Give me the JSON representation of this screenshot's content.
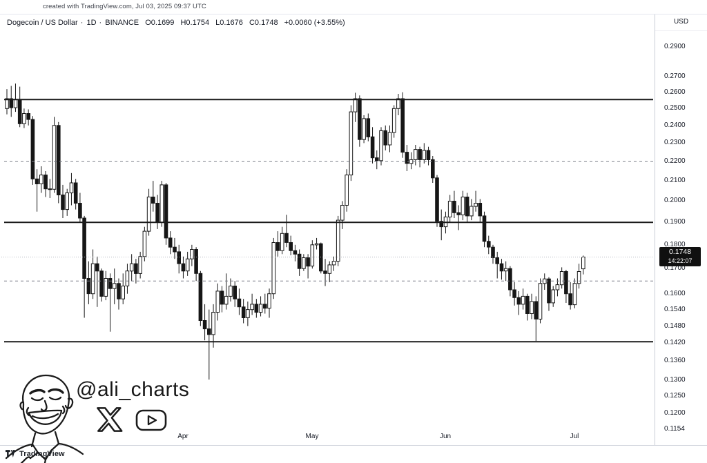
{
  "header": {
    "created_with": "created with TradingView.com, Jul 03, 2025 09:37 UTC"
  },
  "legend": {
    "symbol": "Dogecoin / US Dollar",
    "sep": "·",
    "interval": "1D",
    "exchange": "BINANCE",
    "open": "O0.1699",
    "high": "H0.1754",
    "low": "L0.1676",
    "close": "C0.1748",
    "change": "+0.0060 (+3.55%)"
  },
  "price_axis": {
    "currency": "USD",
    "ticks": [
      "0.2900",
      "0.2700",
      "0.2600",
      "0.2500",
      "0.2400",
      "0.2300",
      "0.2200",
      "0.2100",
      "0.2000",
      "0.1900",
      "0.1800",
      "0.1700",
      "0.1600",
      "0.1540",
      "0.1480",
      "0.1420",
      "0.1360",
      "0.1300",
      "0.1250",
      "0.1200",
      "0.1154"
    ],
    "last_price": "0.1748",
    "countdown": "14:22:07"
  },
  "time_axis": {
    "months": [
      {
        "label": "Apr",
        "date": "Apr 1"
      },
      {
        "label": "May",
        "date": "May 1"
      },
      {
        "label": "Jun",
        "date": "Jun 1"
      },
      {
        "label": "Jul",
        "date": "Jul 1"
      }
    ]
  },
  "watermark": {
    "handle": "@ali_charts"
  },
  "attribution": {
    "brand": "TradingView"
  },
  "chart_data": {
    "type": "candlestick",
    "title": "Dogecoin / US Dollar",
    "exchange": "BINANCE",
    "interval": "1D",
    "quote_currency": "USD",
    "scale": "logarithmic",
    "ohlc_last": {
      "open": 0.1699,
      "high": 0.1754,
      "low": 0.1676,
      "close": 0.1748,
      "change": 0.006,
      "change_pct": 3.55
    },
    "levels": {
      "solid": [
        0.2555,
        0.19,
        0.1425
      ],
      "dashed": [
        0.22,
        0.165
      ],
      "last_price": 0.1748
    },
    "y_axis_range": [
      0.1154,
      0.298
    ],
    "colors": {
      "up_fill": "#ffffff",
      "down_fill": "#161616",
      "outline": "#161616"
    },
    "candles": [
      {
        "d": "Feb 19",
        "o": 0.25,
        "h": 0.262,
        "l": 0.2465,
        "c": 0.256
      },
      {
        "d": "Feb 20",
        "o": 0.256,
        "h": 0.264,
        "l": 0.245,
        "c": 0.2505
      },
      {
        "d": "Feb 21",
        "o": 0.2505,
        "h": 0.2655,
        "l": 0.248,
        "c": 0.2555
      },
      {
        "d": "Feb 22",
        "o": 0.2555,
        "h": 0.2635,
        "l": 0.239,
        "c": 0.241
      },
      {
        "d": "Feb 23",
        "o": 0.241,
        "h": 0.25,
        "l": 0.2385,
        "c": 0.247
      },
      {
        "d": "Feb 24",
        "o": 0.247,
        "h": 0.2495,
        "l": 0.24,
        "c": 0.2435
      },
      {
        "d": "Feb 25",
        "o": 0.2435,
        "h": 0.2455,
        "l": 0.208,
        "c": 0.211
      },
      {
        "d": "Feb 26",
        "o": 0.211,
        "h": 0.216,
        "l": 0.195,
        "c": 0.2085
      },
      {
        "d": "Feb 27",
        "o": 0.2085,
        "h": 0.2175,
        "l": 0.204,
        "c": 0.213
      },
      {
        "d": "Feb 28",
        "o": 0.213,
        "h": 0.215,
        "l": 0.202,
        "c": 0.206
      },
      {
        "d": "Mar 1",
        "o": 0.206,
        "h": 0.211,
        "l": 0.2015,
        "c": 0.2058
      },
      {
        "d": "Mar 2",
        "o": 0.2058,
        "h": 0.245,
        "l": 0.204,
        "c": 0.24
      },
      {
        "d": "Mar 3",
        "o": 0.24,
        "h": 0.242,
        "l": 0.199,
        "c": 0.203
      },
      {
        "d": "Mar 4",
        "o": 0.203,
        "h": 0.208,
        "l": 0.192,
        "c": 0.196
      },
      {
        "d": "Mar 5",
        "o": 0.196,
        "h": 0.206,
        "l": 0.193,
        "c": 0.204
      },
      {
        "d": "Mar 6",
        "o": 0.204,
        "h": 0.214,
        "l": 0.198,
        "c": 0.209
      },
      {
        "d": "Mar 7",
        "o": 0.209,
        "h": 0.211,
        "l": 0.196,
        "c": 0.199
      },
      {
        "d": "Mar 8",
        "o": 0.199,
        "h": 0.204,
        "l": 0.19,
        "c": 0.192
      },
      {
        "d": "Mar 9",
        "o": 0.192,
        "h": 0.193,
        "l": 0.151,
        "c": 0.166
      },
      {
        "d": "Mar 10",
        "o": 0.166,
        "h": 0.173,
        "l": 0.156,
        "c": 0.16
      },
      {
        "d": "Mar 11",
        "o": 0.16,
        "h": 0.178,
        "l": 0.158,
        "c": 0.172
      },
      {
        "d": "Mar 12",
        "o": 0.172,
        "h": 0.175,
        "l": 0.155,
        "c": 0.169
      },
      {
        "d": "Mar 13",
        "o": 0.169,
        "h": 0.17,
        "l": 0.157,
        "c": 0.159
      },
      {
        "d": "Mar 14",
        "o": 0.159,
        "h": 0.169,
        "l": 0.1575,
        "c": 0.166
      },
      {
        "d": "Mar 15",
        "o": 0.166,
        "h": 0.168,
        "l": 0.146,
        "c": 0.162
      },
      {
        "d": "Mar 16",
        "o": 0.162,
        "h": 0.17,
        "l": 0.156,
        "c": 0.164
      },
      {
        "d": "Mar 17",
        "o": 0.164,
        "h": 0.166,
        "l": 0.154,
        "c": 0.158
      },
      {
        "d": "Mar 18",
        "o": 0.158,
        "h": 0.168,
        "l": 0.156,
        "c": 0.163
      },
      {
        "d": "Mar 19",
        "o": 0.163,
        "h": 0.172,
        "l": 0.16,
        "c": 0.169
      },
      {
        "d": "Mar 20",
        "o": 0.169,
        "h": 0.176,
        "l": 0.165,
        "c": 0.172
      },
      {
        "d": "Mar 21",
        "o": 0.172,
        "h": 0.174,
        "l": 0.164,
        "c": 0.168
      },
      {
        "d": "Mar 22",
        "o": 0.168,
        "h": 0.177,
        "l": 0.166,
        "c": 0.175
      },
      {
        "d": "Mar 23",
        "o": 0.175,
        "h": 0.188,
        "l": 0.173,
        "c": 0.186
      },
      {
        "d": "Mar 24",
        "o": 0.186,
        "h": 0.206,
        "l": 0.184,
        "c": 0.202
      },
      {
        "d": "Mar 25",
        "o": 0.202,
        "h": 0.21,
        "l": 0.195,
        "c": 0.199
      },
      {
        "d": "Mar 26",
        "o": 0.199,
        "h": 0.203,
        "l": 0.187,
        "c": 0.19
      },
      {
        "d": "Mar 27",
        "o": 0.19,
        "h": 0.21,
        "l": 0.188,
        "c": 0.208
      },
      {
        "d": "Mar 28",
        "o": 0.208,
        "h": 0.209,
        "l": 0.18,
        "c": 0.183
      },
      {
        "d": "Mar 29",
        "o": 0.183,
        "h": 0.186,
        "l": 0.176,
        "c": 0.179
      },
      {
        "d": "Mar 30",
        "o": 0.179,
        "h": 0.183,
        "l": 0.174,
        "c": 0.177
      },
      {
        "d": "Mar 31",
        "o": 0.177,
        "h": 0.18,
        "l": 0.168,
        "c": 0.172
      },
      {
        "d": "Apr 1",
        "o": 0.172,
        "h": 0.175,
        "l": 0.166,
        "c": 0.169
      },
      {
        "d": "Apr 2",
        "o": 0.169,
        "h": 0.177,
        "l": 0.167,
        "c": 0.174
      },
      {
        "d": "Apr 3",
        "o": 0.174,
        "h": 0.18,
        "l": 0.171,
        "c": 0.178
      },
      {
        "d": "Apr 4",
        "o": 0.178,
        "h": 0.179,
        "l": 0.165,
        "c": 0.168
      },
      {
        "d": "Apr 5",
        "o": 0.168,
        "h": 0.169,
        "l": 0.148,
        "c": 0.15
      },
      {
        "d": "Apr 6",
        "o": 0.15,
        "h": 0.156,
        "l": 0.143,
        "c": 0.147
      },
      {
        "d": "Apr 7",
        "o": 0.147,
        "h": 0.154,
        "l": 0.1301,
        "c": 0.145
      },
      {
        "d": "Apr 8",
        "o": 0.145,
        "h": 0.156,
        "l": 0.1405,
        "c": 0.153
      },
      {
        "d": "Apr 9",
        "o": 0.153,
        "h": 0.164,
        "l": 0.15,
        "c": 0.161
      },
      {
        "d": "Apr 10",
        "o": 0.161,
        "h": 0.163,
        "l": 0.153,
        "c": 0.156
      },
      {
        "d": "Apr 11",
        "o": 0.156,
        "h": 0.168,
        "l": 0.154,
        "c": 0.159
      },
      {
        "d": "Apr 12",
        "o": 0.159,
        "h": 0.166,
        "l": 0.157,
        "c": 0.163
      },
      {
        "d": "Apr 13",
        "o": 0.163,
        "h": 0.165,
        "l": 0.155,
        "c": 0.158
      },
      {
        "d": "Apr 14",
        "o": 0.158,
        "h": 0.162,
        "l": 0.152,
        "c": 0.155
      },
      {
        "d": "Apr 15",
        "o": 0.155,
        "h": 0.158,
        "l": 0.149,
        "c": 0.151
      },
      {
        "d": "Apr 16",
        "o": 0.151,
        "h": 0.157,
        "l": 0.148,
        "c": 0.154
      },
      {
        "d": "Apr 17",
        "o": 0.154,
        "h": 0.16,
        "l": 0.152,
        "c": 0.156
      },
      {
        "d": "Apr 18",
        "o": 0.156,
        "h": 0.158,
        "l": 0.151,
        "c": 0.153
      },
      {
        "d": "Apr 19",
        "o": 0.153,
        "h": 0.159,
        "l": 0.1515,
        "c": 0.156
      },
      {
        "d": "Apr 20",
        "o": 0.156,
        "h": 0.16,
        "l": 0.1525,
        "c": 0.1545
      },
      {
        "d": "Apr 21",
        "o": 0.1545,
        "h": 0.162,
        "l": 0.151,
        "c": 0.16
      },
      {
        "d": "Apr 22",
        "o": 0.16,
        "h": 0.183,
        "l": 0.158,
        "c": 0.181
      },
      {
        "d": "Apr 23",
        "o": 0.181,
        "h": 0.186,
        "l": 0.175,
        "c": 0.1775
      },
      {
        "d": "Apr 24",
        "o": 0.1775,
        "h": 0.188,
        "l": 0.176,
        "c": 0.185
      },
      {
        "d": "Apr 25",
        "o": 0.185,
        "h": 0.1935,
        "l": 0.179,
        "c": 0.181
      },
      {
        "d": "Apr 26",
        "o": 0.181,
        "h": 0.184,
        "l": 0.1755,
        "c": 0.1775
      },
      {
        "d": "Apr 27",
        "o": 0.1775,
        "h": 0.18,
        "l": 0.173,
        "c": 0.176
      },
      {
        "d": "Apr 28",
        "o": 0.176,
        "h": 0.178,
        "l": 0.167,
        "c": 0.17
      },
      {
        "d": "Apr 29",
        "o": 0.17,
        "h": 0.176,
        "l": 0.169,
        "c": 0.1745
      },
      {
        "d": "Apr 30",
        "o": 0.1745,
        "h": 0.176,
        "l": 0.166,
        "c": 0.171
      },
      {
        "d": "May 1",
        "o": 0.171,
        "h": 0.182,
        "l": 0.17,
        "c": 0.18
      },
      {
        "d": "May 2",
        "o": 0.18,
        "h": 0.183,
        "l": 0.178,
        "c": 0.1805
      },
      {
        "d": "May 3",
        "o": 0.1805,
        "h": 0.181,
        "l": 0.168,
        "c": 0.169
      },
      {
        "d": "May 4",
        "o": 0.169,
        "h": 0.174,
        "l": 0.163,
        "c": 0.168
      },
      {
        "d": "May 5",
        "o": 0.168,
        "h": 0.173,
        "l": 0.1645,
        "c": 0.1715
      },
      {
        "d": "May 6",
        "o": 0.1715,
        "h": 0.175,
        "l": 0.169,
        "c": 0.173
      },
      {
        "d": "May 7",
        "o": 0.173,
        "h": 0.193,
        "l": 0.171,
        "c": 0.191
      },
      {
        "d": "May 8",
        "o": 0.191,
        "h": 0.2,
        "l": 0.187,
        "c": 0.198
      },
      {
        "d": "May 9",
        "o": 0.198,
        "h": 0.216,
        "l": 0.195,
        "c": 0.213
      },
      {
        "d": "May 10",
        "o": 0.213,
        "h": 0.252,
        "l": 0.21,
        "c": 0.248
      },
      {
        "d": "May 11",
        "o": 0.248,
        "h": 0.2597,
        "l": 0.242,
        "c": 0.256
      },
      {
        "d": "May 12",
        "o": 0.256,
        "h": 0.258,
        "l": 0.228,
        "c": 0.232
      },
      {
        "d": "May 13",
        "o": 0.232,
        "h": 0.246,
        "l": 0.23,
        "c": 0.244
      },
      {
        "d": "May 14",
        "o": 0.244,
        "h": 0.247,
        "l": 0.231,
        "c": 0.2335
      },
      {
        "d": "May 15",
        "o": 0.2335,
        "h": 0.239,
        "l": 0.219,
        "c": 0.222
      },
      {
        "d": "May 16",
        "o": 0.222,
        "h": 0.226,
        "l": 0.216,
        "c": 0.2205
      },
      {
        "d": "May 17",
        "o": 0.2205,
        "h": 0.239,
        "l": 0.218,
        "c": 0.237
      },
      {
        "d": "May 18",
        "o": 0.237,
        "h": 0.24,
        "l": 0.226,
        "c": 0.229
      },
      {
        "d": "May 19",
        "o": 0.229,
        "h": 0.24,
        "l": 0.225,
        "c": 0.236
      },
      {
        "d": "May 20",
        "o": 0.236,
        "h": 0.252,
        "l": 0.233,
        "c": 0.25
      },
      {
        "d": "May 21",
        "o": 0.25,
        "h": 0.259,
        "l": 0.246,
        "c": 0.256
      },
      {
        "d": "May 22",
        "o": 0.256,
        "h": 0.26,
        "l": 0.222,
        "c": 0.225
      },
      {
        "d": "May 23",
        "o": 0.225,
        "h": 0.229,
        "l": 0.215,
        "c": 0.219
      },
      {
        "d": "May 24",
        "o": 0.219,
        "h": 0.225,
        "l": 0.216,
        "c": 0.221
      },
      {
        "d": "May 25",
        "o": 0.221,
        "h": 0.229,
        "l": 0.218,
        "c": 0.2265
      },
      {
        "d": "May 26",
        "o": 0.2265,
        "h": 0.228,
        "l": 0.217,
        "c": 0.221
      },
      {
        "d": "May 27",
        "o": 0.221,
        "h": 0.23,
        "l": 0.219,
        "c": 0.226
      },
      {
        "d": "May 28",
        "o": 0.226,
        "h": 0.228,
        "l": 0.218,
        "c": 0.221
      },
      {
        "d": "May 29",
        "o": 0.221,
        "h": 0.223,
        "l": 0.209,
        "c": 0.2115
      },
      {
        "d": "May 30",
        "o": 0.2115,
        "h": 0.213,
        "l": 0.188,
        "c": 0.1905
      },
      {
        "d": "May 31",
        "o": 0.1905,
        "h": 0.196,
        "l": 0.182,
        "c": 0.188
      },
      {
        "d": "Jun 1",
        "o": 0.188,
        "h": 0.195,
        "l": 0.185,
        "c": 0.1925
      },
      {
        "d": "Jun 2",
        "o": 0.1925,
        "h": 0.203,
        "l": 0.19,
        "c": 0.2
      },
      {
        "d": "Jun 3",
        "o": 0.2,
        "h": 0.205,
        "l": 0.192,
        "c": 0.1945
      },
      {
        "d": "Jun 4",
        "o": 0.1945,
        "h": 0.198,
        "l": 0.1865,
        "c": 0.1935
      },
      {
        "d": "Jun 5",
        "o": 0.1935,
        "h": 0.205,
        "l": 0.191,
        "c": 0.202
      },
      {
        "d": "Jun 6",
        "o": 0.202,
        "h": 0.204,
        "l": 0.19,
        "c": 0.193
      },
      {
        "d": "Jun 7",
        "o": 0.193,
        "h": 0.201,
        "l": 0.191,
        "c": 0.1975
      },
      {
        "d": "Jun 8",
        "o": 0.1975,
        "h": 0.205,
        "l": 0.195,
        "c": 0.199
      },
      {
        "d": "Jun 9",
        "o": 0.199,
        "h": 0.201,
        "l": 0.19,
        "c": 0.193
      },
      {
        "d": "Jun 10",
        "o": 0.193,
        "h": 0.195,
        "l": 0.179,
        "c": 0.1815
      },
      {
        "d": "Jun 11",
        "o": 0.1815,
        "h": 0.184,
        "l": 0.176,
        "c": 0.179
      },
      {
        "d": "Jun 12",
        "o": 0.179,
        "h": 0.18,
        "l": 0.172,
        "c": 0.1745
      },
      {
        "d": "Jun 13",
        "o": 0.1745,
        "h": 0.177,
        "l": 0.166,
        "c": 0.172
      },
      {
        "d": "Jun 14",
        "o": 0.172,
        "h": 0.174,
        "l": 0.1655,
        "c": 0.169
      },
      {
        "d": "Jun 15",
        "o": 0.169,
        "h": 0.173,
        "l": 0.165,
        "c": 0.17
      },
      {
        "d": "Jun 16",
        "o": 0.17,
        "h": 0.171,
        "l": 0.159,
        "c": 0.1615
      },
      {
        "d": "Jun 17",
        "o": 0.1615,
        "h": 0.1645,
        "l": 0.1555,
        "c": 0.1585
      },
      {
        "d": "Jun 18",
        "o": 0.1585,
        "h": 0.161,
        "l": 0.152,
        "c": 0.156
      },
      {
        "d": "Jun 19",
        "o": 0.156,
        "h": 0.162,
        "l": 0.154,
        "c": 0.159
      },
      {
        "d": "Jun 20",
        "o": 0.159,
        "h": 0.16,
        "l": 0.15,
        "c": 0.1525
      },
      {
        "d": "Jun 21",
        "o": 0.1525,
        "h": 0.16,
        "l": 0.1505,
        "c": 0.157
      },
      {
        "d": "Jun 22",
        "o": 0.157,
        "h": 0.159,
        "l": 0.1428,
        "c": 0.1505
      },
      {
        "d": "Jun 23",
        "o": 0.1505,
        "h": 0.166,
        "l": 0.149,
        "c": 0.164
      },
      {
        "d": "Jun 24",
        "o": 0.164,
        "h": 0.168,
        "l": 0.1615,
        "c": 0.1658
      },
      {
        "d": "Jun 25",
        "o": 0.1658,
        "h": 0.1665,
        "l": 0.1535,
        "c": 0.1565
      },
      {
        "d": "Jun 26",
        "o": 0.1565,
        "h": 0.163,
        "l": 0.155,
        "c": 0.1615
      },
      {
        "d": "Jun 27",
        "o": 0.1615,
        "h": 0.166,
        "l": 0.159,
        "c": 0.1635
      },
      {
        "d": "Jun 28",
        "o": 0.1635,
        "h": 0.1705,
        "l": 0.162,
        "c": 0.1688
      },
      {
        "d": "Jun 29",
        "o": 0.1688,
        "h": 0.1695,
        "l": 0.1565,
        "c": 0.16
      },
      {
        "d": "Jun 30",
        "o": 0.16,
        "h": 0.1645,
        "l": 0.154,
        "c": 0.1558
      },
      {
        "d": "Jul 1",
        "o": 0.1558,
        "h": 0.166,
        "l": 0.1545,
        "c": 0.164
      },
      {
        "d": "Jul 2",
        "o": 0.164,
        "h": 0.172,
        "l": 0.162,
        "c": 0.1688
      },
      {
        "d": "Jul 3",
        "o": 0.1699,
        "h": 0.1754,
        "l": 0.1676,
        "c": 0.1748
      }
    ]
  }
}
